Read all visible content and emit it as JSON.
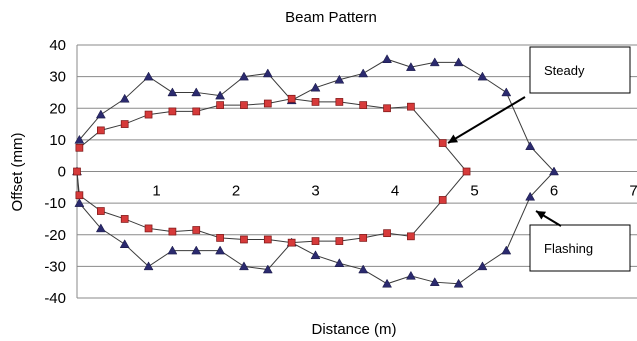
{
  "chart_data": {
    "type": "line",
    "title": "Beam Pattern",
    "xlabel": "Distance (m)",
    "ylabel": "Offset (mm)",
    "xlim": [
      0,
      7
    ],
    "ylim": [
      -40,
      40
    ],
    "x_ticks": [
      "1",
      "2",
      "3",
      "4",
      "5",
      "6",
      "7"
    ],
    "y_ticks": [
      "40",
      "30",
      "20",
      "10",
      "0",
      "-10",
      "-20",
      "-30",
      "-40"
    ],
    "grid": "horizontal",
    "series": [
      {
        "marker": "triangle",
        "color": "#2b2a6e",
        "points": [
          [
            0.03,
            10
          ],
          [
            0.3,
            18
          ],
          [
            0.6,
            23
          ],
          [
            0.9,
            30
          ],
          [
            1.2,
            25
          ],
          [
            1.5,
            25
          ],
          [
            1.8,
            24
          ],
          [
            2.1,
            30
          ],
          [
            2.4,
            31
          ],
          [
            2.7,
            22.5
          ],
          [
            3.0,
            26.5
          ],
          [
            3.3,
            29
          ],
          [
            3.6,
            31
          ],
          [
            3.9,
            35.5
          ],
          [
            4.2,
            33
          ],
          [
            4.5,
            34.5
          ],
          [
            4.8,
            34.5
          ],
          [
            5.1,
            30
          ],
          [
            5.4,
            25
          ],
          [
            5.7,
            8
          ],
          [
            6.0,
            0
          ],
          [
            5.7,
            -8
          ],
          [
            5.4,
            -25
          ],
          [
            5.1,
            -30
          ],
          [
            4.8,
            -35.5
          ],
          [
            4.5,
            -35
          ],
          [
            4.2,
            -33
          ],
          [
            3.9,
            -35.5
          ],
          [
            3.6,
            -31
          ],
          [
            3.3,
            -29
          ],
          [
            3.0,
            -26.5
          ],
          [
            2.7,
            -22.5
          ],
          [
            2.4,
            -31
          ],
          [
            2.1,
            -30
          ],
          [
            1.8,
            -25
          ],
          [
            1.5,
            -25
          ],
          [
            1.2,
            -25
          ],
          [
            0.9,
            -30
          ],
          [
            0.6,
            -23
          ],
          [
            0.3,
            -18
          ],
          [
            0.03,
            -10
          ],
          [
            0,
            0
          ]
        ]
      },
      {
        "marker": "square",
        "color": "#d63a3a",
        "points": [
          [
            0.03,
            7.5
          ],
          [
            0.3,
            13
          ],
          [
            0.6,
            15
          ],
          [
            0.9,
            18
          ],
          [
            1.2,
            19
          ],
          [
            1.5,
            19
          ],
          [
            1.8,
            21
          ],
          [
            2.1,
            21
          ],
          [
            2.4,
            21.5
          ],
          [
            2.7,
            23
          ],
          [
            3.0,
            22
          ],
          [
            3.3,
            22
          ],
          [
            3.6,
            21
          ],
          [
            3.9,
            20
          ],
          [
            4.2,
            20.5
          ],
          [
            4.6,
            9
          ],
          [
            4.9,
            0
          ],
          [
            4.6,
            -9
          ],
          [
            4.2,
            -20.5
          ],
          [
            3.9,
            -19.5
          ],
          [
            3.6,
            -21
          ],
          [
            3.3,
            -22
          ],
          [
            3.0,
            -22
          ],
          [
            2.7,
            -22.5
          ],
          [
            2.4,
            -21.5
          ],
          [
            2.1,
            -21.5
          ],
          [
            1.8,
            -21
          ],
          [
            1.5,
            -18.5
          ],
          [
            1.2,
            -19
          ],
          [
            0.9,
            -18
          ],
          [
            0.6,
            -15
          ],
          [
            0.3,
            -12.5
          ],
          [
            0.03,
            -7.5
          ],
          [
            0,
            0
          ]
        ]
      }
    ],
    "annotations": [
      {
        "text": "Steady"
      },
      {
        "text": "Flashing"
      }
    ]
  }
}
